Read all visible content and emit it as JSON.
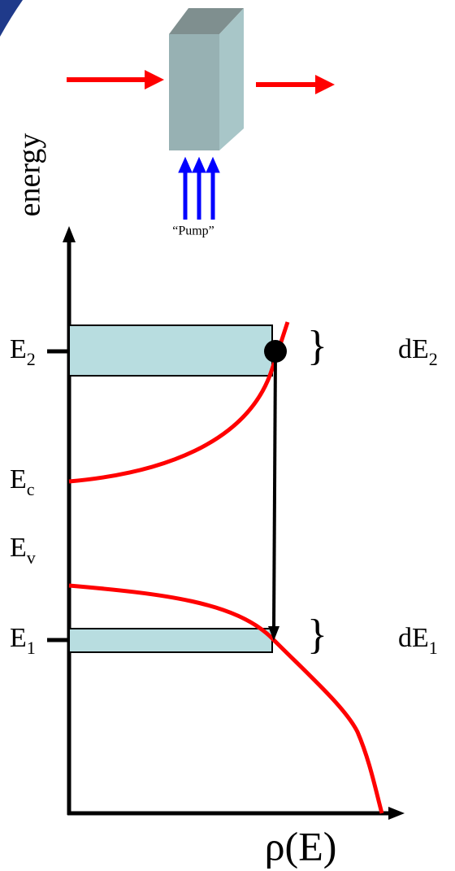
{
  "pump": "“Pump”",
  "axis": {
    "y_label": "energy",
    "x_label": "ρ(E)"
  },
  "levels": [
    {
      "base": "E",
      "sub": "2"
    },
    {
      "base": "E",
      "sub": "c"
    },
    {
      "base": "E",
      "sub": "v"
    },
    {
      "base": "E",
      "sub": "1"
    }
  ],
  "widths": [
    {
      "brace": "}",
      "base": "dE",
      "sub": "2"
    },
    {
      "brace": "}",
      "base": "dE",
      "sub": "1"
    }
  ]
}
